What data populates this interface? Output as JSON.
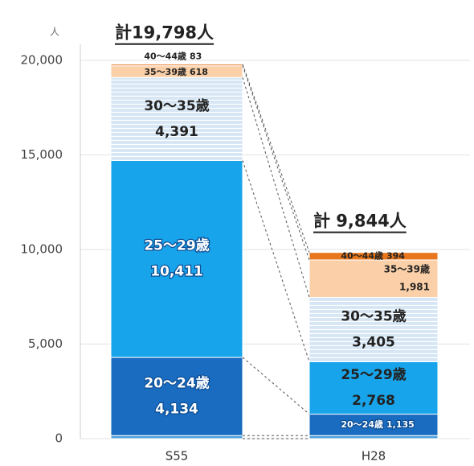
{
  "chart_data": {
    "type": "stacked_bar",
    "y_unit": "人",
    "categories": [
      "S55",
      "H28"
    ],
    "totals": [
      "計19,798人",
      "計 9,844人"
    ],
    "series": [
      {
        "color": "#4a9fdc",
        "values": [
          161,
          161
        ]
      },
      {
        "name": "20～24歳",
        "color": "#1a6cc0",
        "values": [
          4134,
          1135
        ],
        "value_labels": [
          "4,134",
          "1,135"
        ]
      },
      {
        "name": "25～29歳",
        "color": "#18a4ea",
        "values": [
          10411,
          2768
        ],
        "value_labels": [
          "10,411",
          "2,768"
        ]
      },
      {
        "name": "30～35歳",
        "color": "#c8def2",
        "striped": true,
        "values": [
          4391,
          3405
        ],
        "value_labels": [
          "4,391",
          "3,405"
        ]
      },
      {
        "name": "35～39歳",
        "color": "#fbd0a8",
        "values": [
          618,
          1981
        ],
        "value_labels": [
          "618",
          "1,981"
        ]
      },
      {
        "name": "40～44歳",
        "color": "#e8761c",
        "values": [
          83,
          394
        ],
        "value_labels": [
          "83",
          "394"
        ]
      }
    ],
    "ylim": [
      0,
      20000
    ],
    "yticks": [
      0,
      {
        "value": 5000,
        "label": "5,000"
      },
      {
        "value": 10000,
        "label": "10,000"
      },
      {
        "value": 15000,
        "label": "15,000"
      },
      {
        "value": 20000,
        "label": "20,000"
      }
    ]
  }
}
